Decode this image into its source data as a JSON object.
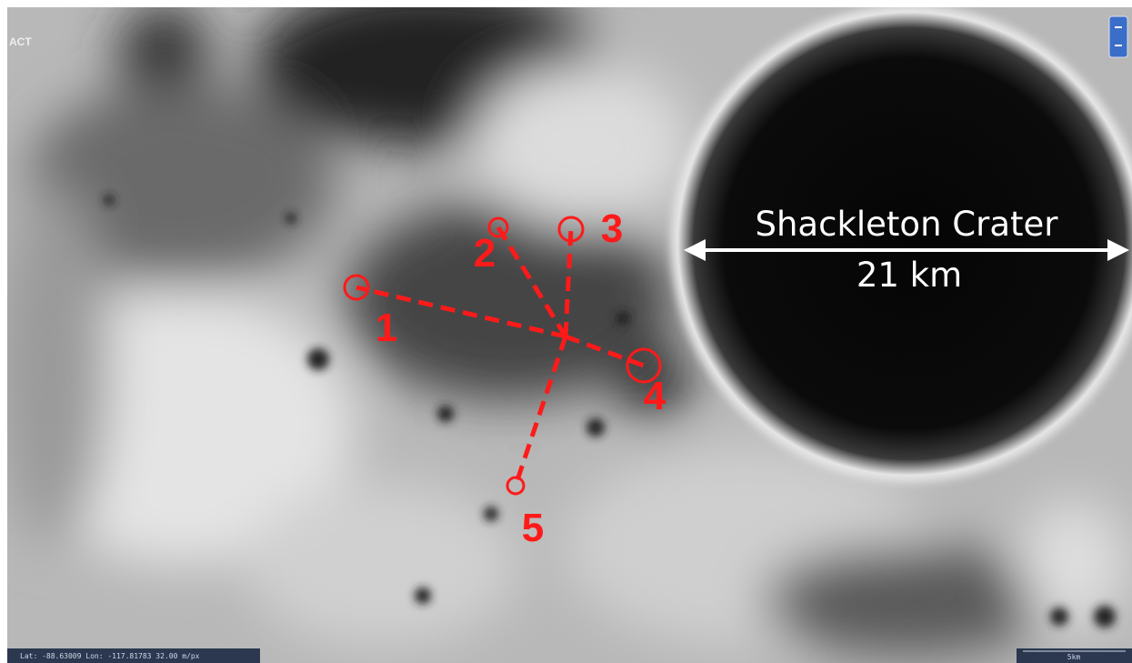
{
  "map": {
    "logo": "ACT",
    "crater": {
      "name": "Shackleton Crater",
      "diameter": "21 km"
    },
    "sites": [
      {
        "label": "1"
      },
      {
        "label": "2"
      },
      {
        "label": "3"
      },
      {
        "label": "4"
      },
      {
        "label": "5"
      }
    ],
    "status_bar": "Lat: -88.63009 Lon: -117.81783 32.00 m/px",
    "scale_bar": "5km"
  }
}
